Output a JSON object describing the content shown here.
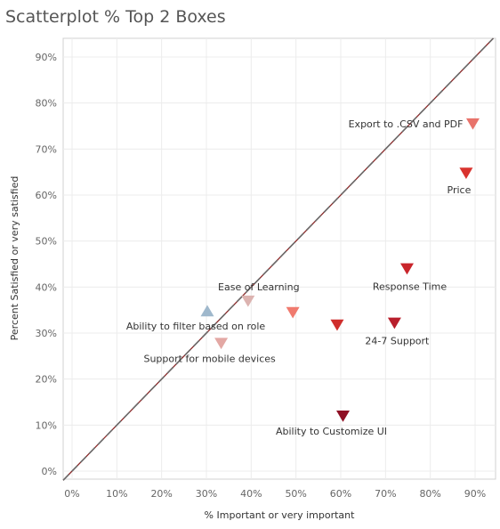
{
  "chart_data": {
    "type": "scatter",
    "title": "Scatterplot % Top 2 Boxes",
    "xlabel": "% Important or very important",
    "ylabel": "Percent Satisfied or very satisfied",
    "xlim": [
      -0.01,
      0.93
    ],
    "ylim": [
      -0.01,
      0.94
    ],
    "x_ticks": [
      0,
      0.1,
      0.2,
      0.3,
      0.4,
      0.5,
      0.6,
      0.7,
      0.8,
      0.9
    ],
    "x_tick_labels": [
      "0%",
      "10%",
      "20%",
      "30%",
      "40%",
      "50%",
      "60%",
      "70%",
      "80%",
      "90%"
    ],
    "y_ticks": [
      0,
      0.1,
      0.2,
      0.3,
      0.4,
      0.5,
      0.6,
      0.7,
      0.8,
      0.9
    ],
    "y_tick_labels": [
      "0%",
      "10%",
      "20%",
      "30%",
      "40%",
      "50%",
      "60%",
      "70%",
      "80%",
      "90%"
    ],
    "grid": true,
    "reference_line": "y = x",
    "points": [
      {
        "label": "Export to .CSV and PDF",
        "x": 0.895,
        "y": 0.755,
        "marker": "triangle-down",
        "color": "#e8736b",
        "label_pos": "left"
      },
      {
        "label": "Price",
        "x": 0.88,
        "y": 0.648,
        "marker": "triangle-down",
        "color": "#d9332e",
        "label_pos": "below"
      },
      {
        "label": "Response Time",
        "x": 0.748,
        "y": 0.44,
        "marker": "triangle-down",
        "color": "#c9252b",
        "label_pos": "below-left"
      },
      {
        "label": "24-7 Support",
        "x": 0.72,
        "y": 0.322,
        "marker": "triangle-down",
        "color": "#b81f2c",
        "label_pos": "below-left"
      },
      {
        "label": "",
        "x": 0.592,
        "y": 0.318,
        "marker": "triangle-down",
        "color": "#cf2e2c",
        "label_pos": "none"
      },
      {
        "label": "",
        "x": 0.493,
        "y": 0.345,
        "marker": "triangle-down",
        "color": "#f07a6e",
        "label_pos": "none"
      },
      {
        "label": "Ease of Learning",
        "x": 0.393,
        "y": 0.37,
        "marker": "triangle-down",
        "color": "#dcb3b0",
        "label_pos": "above-right"
      },
      {
        "label": "Ability to filter based on role",
        "x": 0.302,
        "y": 0.348,
        "marker": "triangle-up",
        "color": "#9fb8cc",
        "label_pos": "below-right"
      },
      {
        "label": "Support for mobile devices",
        "x": 0.333,
        "y": 0.278,
        "marker": "triangle-down",
        "color": "#e3a8a4",
        "label_pos": "below-right"
      },
      {
        "label": "Ability to Customize UI",
        "x": 0.605,
        "y": 0.12,
        "marker": "triangle-down",
        "color": "#8f0f24",
        "label_pos": "below-right"
      }
    ]
  }
}
